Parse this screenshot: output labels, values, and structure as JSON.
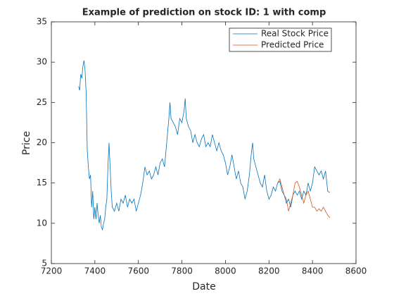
{
  "chart_data": {
    "type": "line",
    "title": "Example of prediction on stock ID: 1 with comp",
    "xlabel": "Date",
    "ylabel": "Price",
    "xlim": [
      7200,
      8600
    ],
    "xticks": [
      7200,
      7400,
      7600,
      7800,
      8000,
      8200,
      8400,
      8600
    ],
    "ylim": [
      5,
      35
    ],
    "yticks": [
      5,
      10,
      15,
      20,
      25,
      30,
      35
    ],
    "legend": "top-right",
    "series": [
      {
        "name": "Real Stock Price",
        "color": "#0072bd",
        "x": [
          7325,
          7330,
          7335,
          7340,
          7345,
          7350,
          7355,
          7360,
          7365,
          7370,
          7375,
          7380,
          7385,
          7390,
          7395,
          7400,
          7405,
          7410,
          7415,
          7420,
          7425,
          7430,
          7435,
          7440,
          7445,
          7450,
          7455,
          7460,
          7465,
          7470,
          7475,
          7480,
          7490,
          7500,
          7510,
          7520,
          7530,
          7540,
          7550,
          7560,
          7570,
          7580,
          7590,
          7600,
          7610,
          7620,
          7630,
          7640,
          7650,
          7660,
          7670,
          7680,
          7690,
          7700,
          7710,
          7720,
          7730,
          7740,
          7745,
          7750,
          7760,
          7770,
          7780,
          7790,
          7800,
          7810,
          7815,
          7820,
          7830,
          7840,
          7850,
          7860,
          7870,
          7880,
          7890,
          7900,
          7910,
          7920,
          7930,
          7940,
          7950,
          7960,
          7970,
          7980,
          7990,
          8000,
          8010,
          8020,
          8030,
          8040,
          8050,
          8060,
          8070,
          8080,
          8090,
          8100,
          8110,
          8120,
          8125,
          8130,
          8140,
          8150,
          8160,
          8170,
          8180,
          8190,
          8200,
          8210,
          8220,
          8230,
          8240,
          8250,
          8260,
          8270,
          8280,
          8290,
          8300,
          8310,
          8320,
          8330,
          8340,
          8350,
          8360,
          8370,
          8380,
          8390,
          8400,
          8410,
          8420,
          8430,
          8440,
          8450,
          8460,
          8470,
          8480
        ],
        "values": [
          27,
          26.5,
          28.5,
          28,
          29.5,
          30.2,
          29,
          26,
          19,
          17,
          15.5,
          16,
          12,
          14,
          10.5,
          12,
          10.5,
          12.5,
          11,
          10,
          11,
          9.5,
          9.2,
          10,
          10.5,
          12,
          13,
          17,
          20,
          17,
          14,
          12,
          11.5,
          12.5,
          11.5,
          13,
          12.5,
          13.5,
          12,
          13,
          12.5,
          13,
          11.5,
          12.5,
          13.5,
          15,
          17,
          16,
          16.5,
          15.5,
          16,
          17,
          16,
          17.5,
          18,
          17,
          20,
          23,
          25,
          23,
          22.5,
          22,
          21,
          23,
          22.5,
          24,
          25.5,
          23,
          22,
          21.5,
          20,
          21,
          20,
          19.5,
          20.5,
          21,
          19.5,
          20,
          19.5,
          21,
          20,
          19,
          20,
          19,
          18.5,
          17.5,
          16,
          17,
          18.5,
          17,
          15.5,
          16.5,
          15,
          14.5,
          13,
          14,
          16,
          19,
          20,
          18,
          17,
          16,
          15,
          14.5,
          16,
          14,
          13,
          13.5,
          14.5,
          14,
          15,
          15.2,
          14,
          13.5,
          12.5,
          13,
          12,
          13.5,
          14,
          13.5,
          14,
          13,
          14,
          13.5,
          15,
          14,
          15,
          17,
          16.5,
          16,
          16.5,
          15.5,
          16.5,
          14,
          13.8
        ]
      },
      {
        "name": "Predicted Price",
        "color": "#d95319",
        "x": [
          8240,
          8250,
          8260,
          8270,
          8280,
          8290,
          8300,
          8310,
          8320,
          8330,
          8340,
          8350,
          8360,
          8370,
          8380,
          8390,
          8400,
          8410,
          8420,
          8430,
          8440,
          8450,
          8460,
          8470,
          8480
        ],
        "values": [
          15,
          15.5,
          14.5,
          13.5,
          13,
          11.5,
          12.5,
          13.5,
          15,
          15.2,
          14.5,
          13.5,
          12.5,
          13.5,
          14,
          13,
          12,
          12,
          11.5,
          11.8,
          11.5,
          12,
          11.5,
          11,
          10.7
        ]
      }
    ]
  }
}
